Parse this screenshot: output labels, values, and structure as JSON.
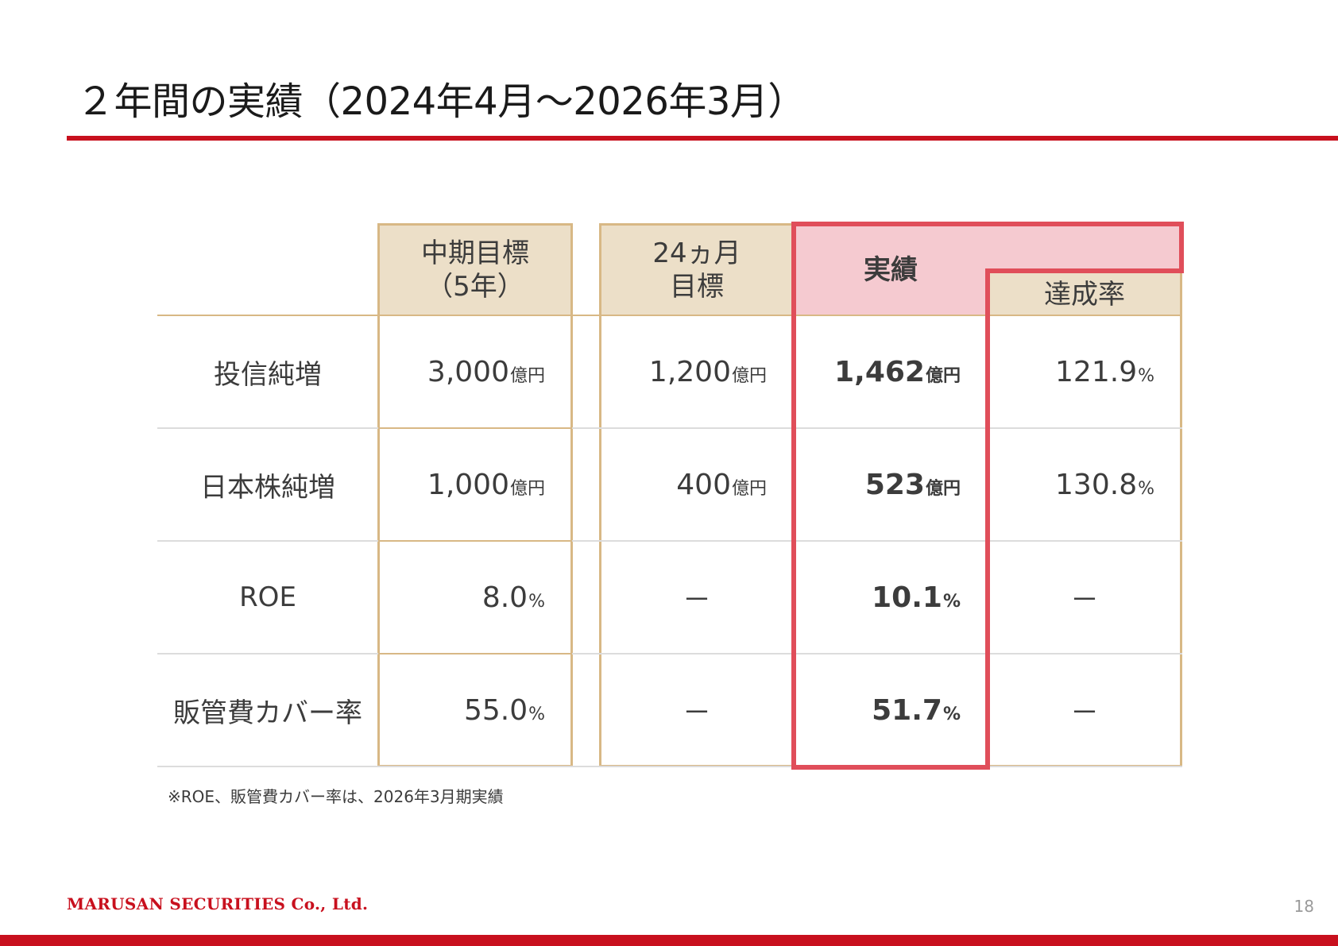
{
  "page": {
    "title": "２年間の実績（2024年4月～2026年3月）",
    "company": "MARUSAN SECURITIES Co., Ltd.",
    "page_number": "18",
    "footnote": "※ROE、販管費カバー率は、2026年3月期実績"
  },
  "colors": {
    "brand_red": "#c8101e",
    "header_beige": "#ecdfc8",
    "actual_pink": "#f5cad0",
    "highlight_frame": "#e04e5a",
    "table_frame": "#d8b885"
  },
  "table": {
    "headers": {
      "midterm_line1": "中期目標",
      "midterm_line2": "（5年）",
      "target24_line1": "24ヵ月",
      "target24_line2": "目標",
      "actual": "実績",
      "achievement": "達成率"
    },
    "rows": [
      {
        "label": "投信純増",
        "midterm": {
          "num": "3,000",
          "unit": "億円"
        },
        "target24": {
          "num": "1,200",
          "unit": "億円"
        },
        "actual": {
          "num": "1,462",
          "unit": "億円"
        },
        "rate": {
          "num": "121.9",
          "unit": "%"
        }
      },
      {
        "label": "日本株純増",
        "midterm": {
          "num": "1,000",
          "unit": "億円"
        },
        "target24": {
          "num": "400",
          "unit": "億円"
        },
        "actual": {
          "num": "523",
          "unit": "億円"
        },
        "rate": {
          "num": "130.8",
          "unit": "%"
        }
      },
      {
        "label": "ROE",
        "midterm": {
          "num": "8.0",
          "unit": "%"
        },
        "target24": {
          "num": "－",
          "unit": ""
        },
        "actual": {
          "num": "10.1",
          "unit": "%"
        },
        "rate": {
          "num": "－",
          "unit": ""
        }
      },
      {
        "label": "販管費カバー率",
        "midterm": {
          "num": "55.0",
          "unit": "%"
        },
        "target24": {
          "num": "－",
          "unit": ""
        },
        "actual": {
          "num": "51.7",
          "unit": "%"
        },
        "rate": {
          "num": "－",
          "unit": ""
        }
      }
    ]
  }
}
